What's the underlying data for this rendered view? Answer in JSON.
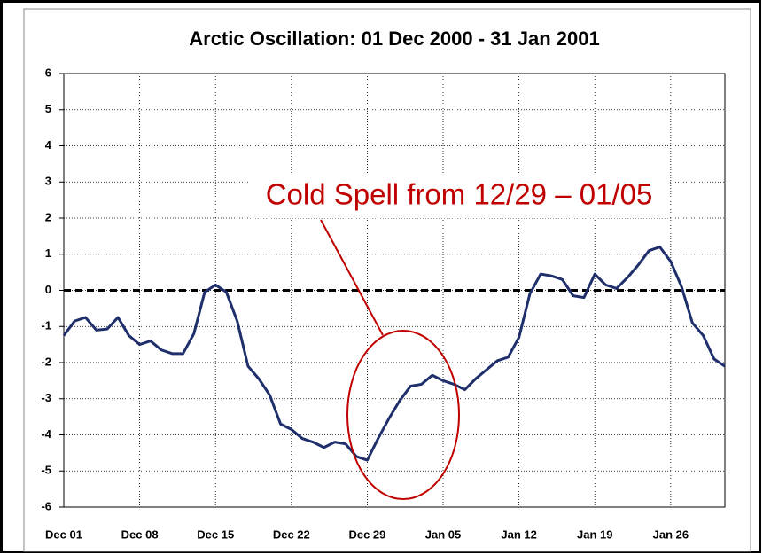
{
  "chart_data": {
    "type": "line",
    "title": "Arctic Oscillation: 01 Dec 2000 - 31 Jan 2001",
    "categories": [
      "Dec 01",
      null,
      null,
      null,
      null,
      null,
      null,
      "Dec 08",
      null,
      null,
      null,
      null,
      null,
      null,
      "Dec 15",
      null,
      null,
      null,
      null,
      null,
      null,
      "Dec 22",
      null,
      null,
      null,
      null,
      null,
      null,
      "Dec 29",
      null,
      null,
      null,
      null,
      null,
      null,
      "Jan 05",
      null,
      null,
      null,
      null,
      null,
      null,
      "Jan 12",
      null,
      null,
      null,
      null,
      null,
      null,
      "Jan 19",
      null,
      null,
      null,
      null,
      null,
      null,
      "Jan 26",
      null,
      null,
      null,
      null,
      null
    ],
    "values": [
      -1.25,
      -0.85,
      -0.75,
      -1.1,
      -1.07,
      -0.75,
      -1.25,
      -1.5,
      -1.4,
      -1.65,
      -1.75,
      -1.75,
      -1.2,
      -0.05,
      0.15,
      -0.05,
      -0.85,
      -2.1,
      -2.45,
      -2.9,
      -3.7,
      -3.85,
      -4.1,
      -4.2,
      -4.35,
      -4.2,
      -4.25,
      -4.6,
      -4.7,
      -4.1,
      -3.55,
      -3.05,
      -2.65,
      -2.6,
      -2.35,
      -2.5,
      -2.6,
      -2.75,
      -2.45,
      -2.2,
      -1.95,
      -1.85,
      -1.3,
      -0.1,
      0.45,
      0.4,
      0.3,
      -0.15,
      -0.2,
      0.45,
      0.15,
      0.05,
      0.35,
      0.7,
      1.1,
      1.2,
      0.8,
      0.1,
      -0.9,
      -1.25,
      -1.9,
      -2.1
    ],
    "color": "#1f2f6b",
    "ylim": [
      -6,
      6
    ],
    "yticks": [
      -6,
      -5,
      -4,
      -3,
      -2,
      -1,
      0,
      1,
      2,
      3,
      4,
      5,
      6
    ],
    "grid": true,
    "reference_line": 0,
    "annotation": "Cold Spell from 12/29 – 01/05",
    "annotation_color": "#c00000"
  }
}
